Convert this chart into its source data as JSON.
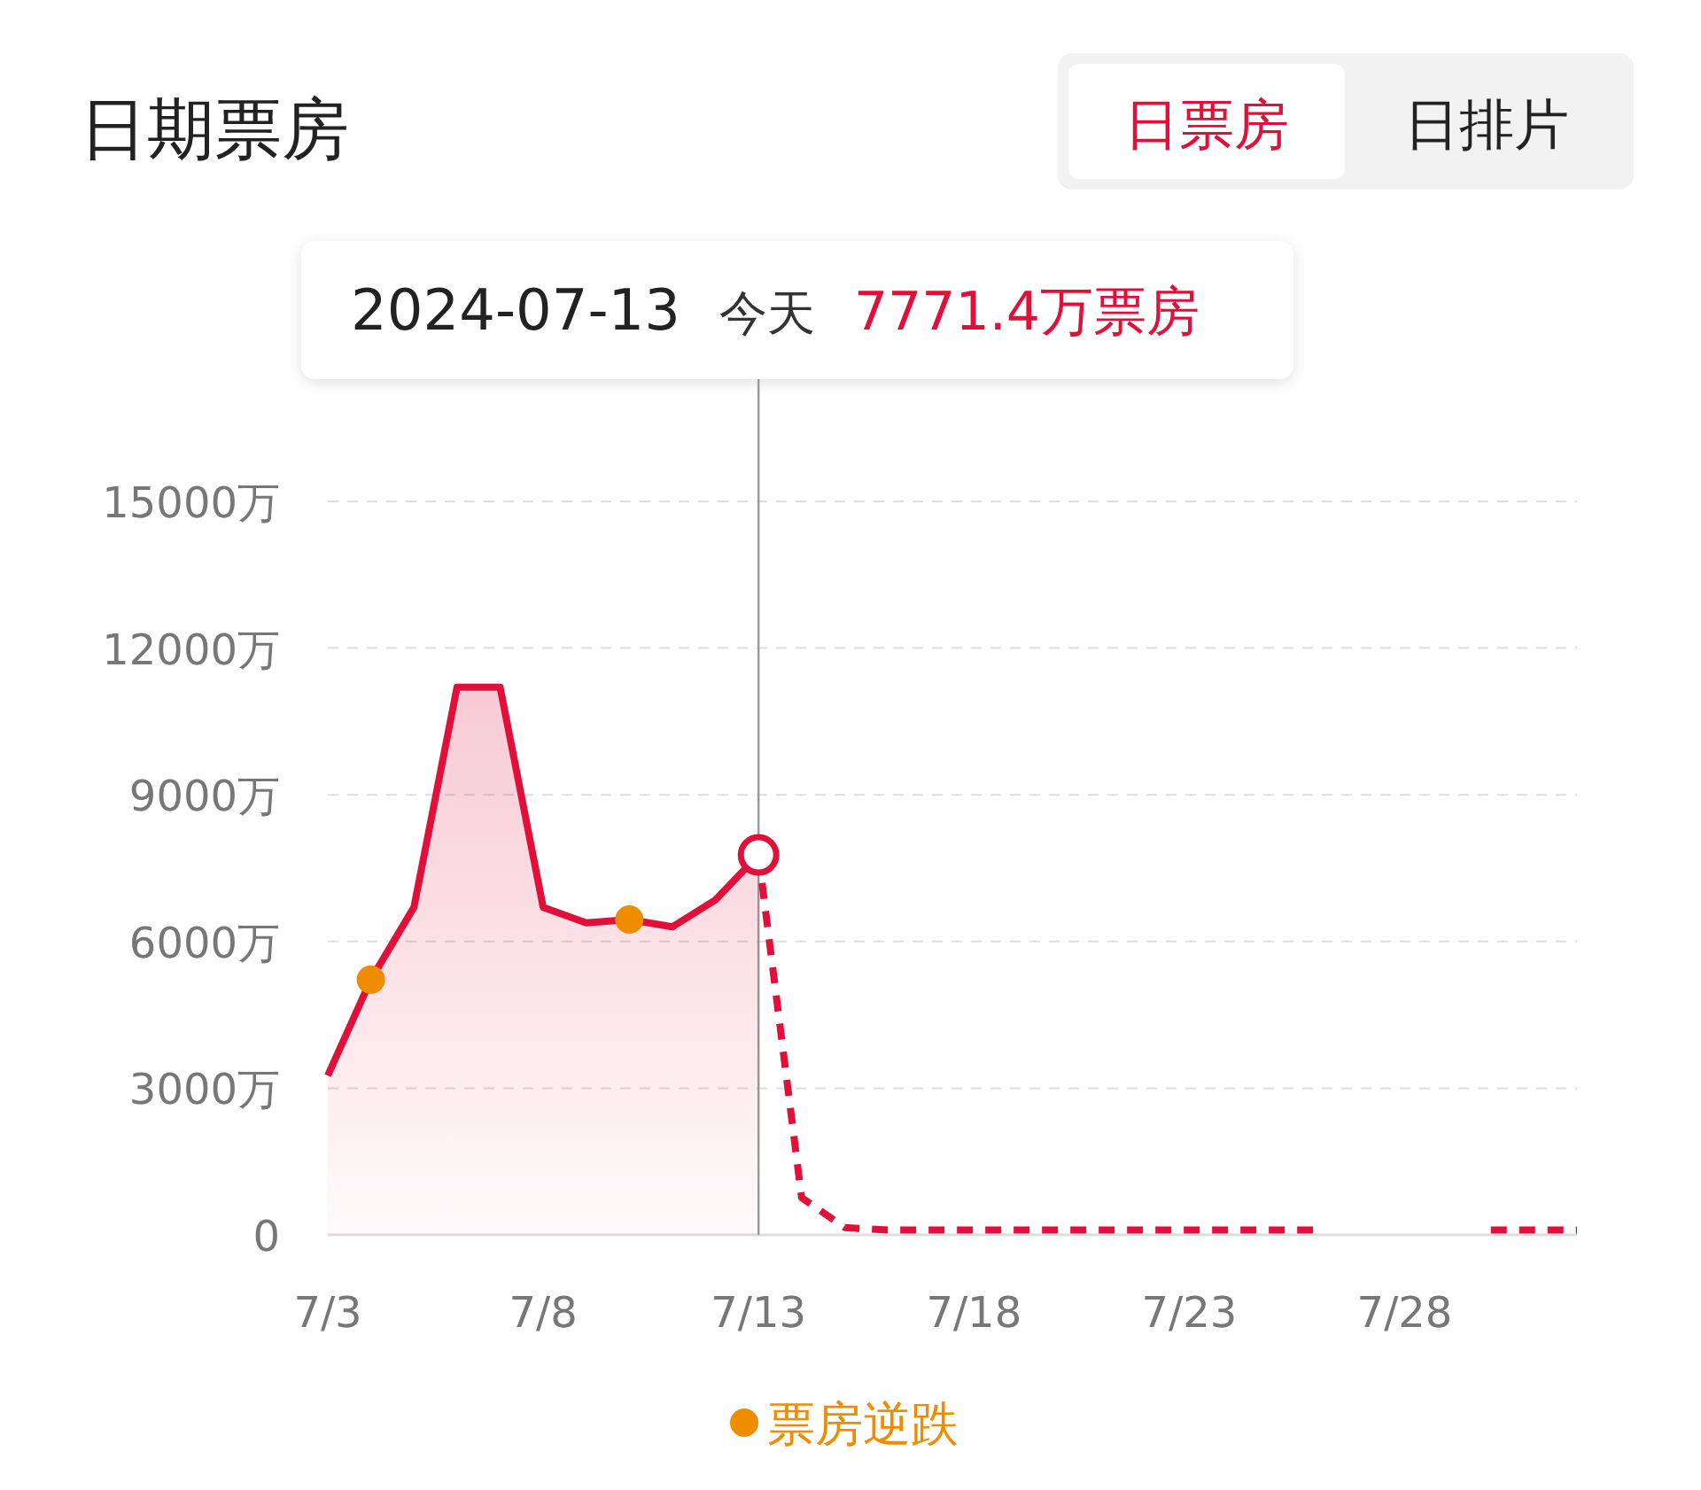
{
  "chart_data": {
    "type": "line",
    "title": "日期票房",
    "annotations": [
      "日票房",
      "日排片",
      "2024-07-13 今天 7771.4万票房"
    ],
    "series": [
      {
        "type": "area",
        "color": "#e0103a",
        "line_style": "solid",
        "x": [
          "2024-07-03",
          "2024-07-04",
          "2024-07-05",
          "2024-07-06",
          "2024-07-07",
          "2024-07-08",
          "2024-07-09",
          "2024-07-10",
          "2024-07-11",
          "2024-07-12",
          "2024-07-13"
        ],
        "values": [
          3260,
          5220,
          6700,
          11200,
          11200,
          6700,
          6380,
          6450,
          6300,
          6850,
          7771.4
        ]
      },
      {
        "color": "#e0103a",
        "line_style": "dashed",
        "x": [
          "2024-07-13",
          "2024-07-14",
          "2024-07-15",
          "2024-07-16",
          "2024-07-17",
          "2024-07-18",
          "2024-07-19",
          "2024-07-20",
          "2024-07-21",
          "2024-07-22",
          "2024-07-23",
          "2024-07-24",
          "2024-07-25",
          "2024-07-26",
          "2024-07-27",
          "2024-07-28",
          "2024-07-29",
          "2024-07-30",
          "2024-07-31",
          "2024-08-01"
        ],
        "values": [
          7771.4,
          760,
          150,
          100,
          100,
          100,
          100,
          100,
          100,
          100,
          100,
          100,
          100,
          100,
          null,
          null,
          null,
          100,
          100,
          100
        ]
      },
      {
        "type": "scatter",
        "name": "票房逆跌",
        "color": "#f08c00",
        "marker": "circle",
        "x": [
          "2024-07-04",
          "2024-07-10"
        ],
        "values": [
          5220,
          6450
        ]
      }
    ],
    "ref_lines": [
      {
        "axis": "x",
        "value": "2024-07-13",
        "color": "#999999"
      }
    ],
    "xlim": [
      "2024-07-03",
      "2024-08-01"
    ],
    "xticks": [
      {
        "value": "2024-07-03",
        "label": "7/3"
      },
      {
        "value": "2024-07-08",
        "label": "7/8"
      },
      {
        "value": "2024-07-13",
        "label": "7/13"
      },
      {
        "value": "2024-07-18",
        "label": "7/18"
      },
      {
        "value": "2024-07-23",
        "label": "7/23"
      },
      {
        "value": "2024-07-28",
        "label": "7/28"
      }
    ],
    "ylim": [
      0,
      15000
    ],
    "yticks": [
      0,
      {
        "value": 3000,
        "label": "3000万"
      },
      {
        "value": 6000,
        "label": "6000万"
      },
      {
        "value": 9000,
        "label": "9000万"
      },
      {
        "value": 12000,
        "label": "12000万"
      },
      {
        "value": 15000,
        "label": "15000万"
      }
    ],
    "grid": "y",
    "legend": "bottom"
  }
}
